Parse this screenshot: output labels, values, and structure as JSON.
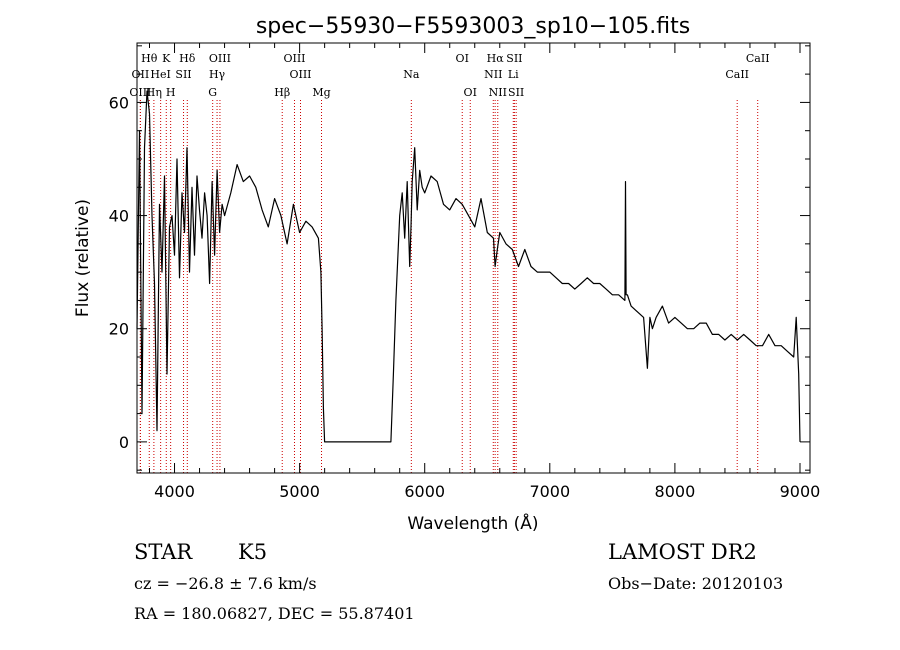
{
  "chart_data": {
    "type": "line",
    "title": "spec−55930−F5593003_sp10−105.fits",
    "xlabel": "Wavelength (Å)",
    "ylabel": "Flux (relative)",
    "xlim": [
      3700,
      9080
    ],
    "ylim": [
      -5.5,
      70.5
    ],
    "xticks": [
      4000,
      5000,
      6000,
      7000,
      8000,
      9000
    ],
    "yticks": [
      0,
      20,
      40,
      60
    ],
    "grid": false,
    "series": [
      {
        "x": [
          3700,
          3720,
          3740,
          3760,
          3780,
          3800,
          3820,
          3840,
          3860,
          3880,
          3900,
          3920,
          3940,
          3960,
          3980,
          4000,
          4020,
          4040,
          4060,
          4080,
          4100,
          4120,
          4140,
          4160,
          4180,
          4200,
          4220,
          4240,
          4260,
          4280,
          4300,
          4320,
          4340,
          4360,
          4380,
          4400,
          4450,
          4500,
          4550,
          4600,
          4650,
          4700,
          4750,
          4800,
          4850,
          4900,
          4950,
          5000,
          5050,
          5100,
          5150,
          5170,
          5180,
          5190,
          5200,
          5300,
          5400,
          5500,
          5600,
          5700,
          5730,
          5750,
          5770,
          5800,
          5820,
          5840,
          5860,
          5880,
          5890,
          5900,
          5920,
          5940,
          5960,
          5980,
          6000,
          6050,
          6100,
          6150,
          6200,
          6250,
          6300,
          6350,
          6400,
          6450,
          6500,
          6550,
          6563,
          6580,
          6600,
          6650,
          6700,
          6750,
          6800,
          6850,
          6900,
          6950,
          7000,
          7050,
          7100,
          7150,
          7200,
          7250,
          7300,
          7350,
          7400,
          7450,
          7500,
          7550,
          7600,
          7605,
          7610,
          7620,
          7650,
          7700,
          7750,
          7780,
          7800,
          7820,
          7850,
          7900,
          7950,
          8000,
          8050,
          8100,
          8150,
          8200,
          8250,
          8300,
          8350,
          8400,
          8450,
          8500,
          8550,
          8600,
          8650,
          8700,
          8750,
          8800,
          8850,
          8900,
          8950,
          8970,
          8990,
          9000
        ],
        "y": [
          20,
          55,
          5,
          52,
          62,
          58,
          40,
          28,
          2,
          42,
          30,
          47,
          12,
          38,
          40,
          33,
          50,
          29,
          44,
          37,
          52,
          30,
          45,
          33,
          47,
          41,
          36,
          44,
          40,
          28,
          46,
          33,
          48,
          37,
          42,
          40,
          44,
          49,
          46,
          47,
          45,
          41,
          38,
          43,
          40,
          35,
          42,
          37,
          39,
          38,
          36,
          30,
          20,
          6,
          0,
          0,
          0,
          0,
          0,
          0,
          0,
          12,
          25,
          40,
          44,
          36,
          46,
          31,
          38,
          46,
          52,
          41,
          48,
          45,
          44,
          47,
          46,
          42,
          41,
          43,
          42,
          40,
          38,
          43,
          37,
          36,
          31,
          34,
          37,
          35,
          34,
          31,
          34,
          31,
          30,
          30,
          30,
          29,
          28,
          28,
          27,
          28,
          29,
          28,
          28,
          27,
          26,
          26,
          25,
          46,
          26,
          26,
          24,
          23,
          22,
          13,
          22,
          20,
          22,
          24,
          21,
          22,
          21,
          20,
          20,
          21,
          21,
          19,
          19,
          18,
          19,
          18,
          19,
          18,
          17,
          17,
          19,
          17,
          17,
          16,
          15,
          22,
          12,
          0
        ]
      }
    ],
    "lines": [
      {
        "name": "Hθ",
        "x": 3798,
        "row": 0
      },
      {
        "name": "K",
        "x": 3934,
        "row": 0
      },
      {
        "name": "Hδ",
        "x": 4102,
        "row": 0
      },
      {
        "name": "OIII",
        "x": 4363,
        "row": 0
      },
      {
        "name": "OIII",
        "x": 4959,
        "row": 0
      },
      {
        "name": "OI",
        "x": 6300,
        "row": 0
      },
      {
        "name": "Hα",
        "x": 6563,
        "row": 0
      },
      {
        "name": "SII",
        "x": 6717,
        "row": 0
      },
      {
        "name": "CaII",
        "x": 8662,
        "row": 0
      },
      {
        "name": "OII",
        "x": 3727,
        "row": 1
      },
      {
        "name": "HeI",
        "x": 3889,
        "row": 1
      },
      {
        "name": "SII",
        "x": 4072,
        "row": 1
      },
      {
        "name": "Hγ",
        "x": 4340,
        "row": 1
      },
      {
        "name": "OIII",
        "x": 5007,
        "row": 1
      },
      {
        "name": "Na",
        "x": 5893,
        "row": 1
      },
      {
        "name": "NII",
        "x": 6548,
        "row": 1
      },
      {
        "name": "Li",
        "x": 6708,
        "row": 1
      },
      {
        "name": "CaII",
        "x": 8498,
        "row": 1
      },
      {
        "name": "OIII",
        "x": 3727,
        "row": 2
      },
      {
        "name": "Hη",
        "x": 3835,
        "row": 2
      },
      {
        "name": "H",
        "x": 3969,
        "row": 2
      },
      {
        "name": "G",
        "x": 4305,
        "row": 2
      },
      {
        "name": "Hβ",
        "x": 4861,
        "row": 2
      },
      {
        "name": "Mg",
        "x": 5175,
        "row": 2
      },
      {
        "name": "OI",
        "x": 6364,
        "row": 2
      },
      {
        "name": "NII",
        "x": 6584,
        "row": 2
      },
      {
        "name": "SII",
        "x": 6731,
        "row": 2
      }
    ],
    "line_color": "#000000",
    "marker_color": "#cc0000"
  },
  "info": {
    "obj_class": "STAR",
    "subclass": "K5",
    "survey": "LAMOST DR2",
    "cz": "cz = −26.8 ± 7.6 km/s",
    "obs_date": "Obs−Date: 20120103",
    "radec": "RA = 180.06827, DEC =  55.87401"
  }
}
